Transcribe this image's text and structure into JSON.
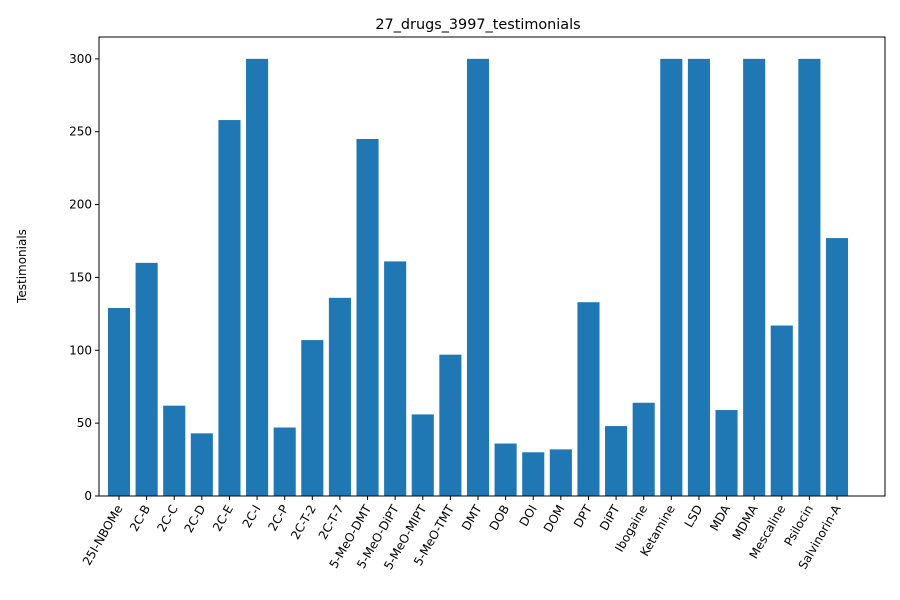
{
  "chart_data": {
    "type": "bar",
    "title": "27_drugs_3997_testimonials",
    "xlabel": "",
    "ylabel": "Testimonials",
    "ylim": [
      0,
      315
    ],
    "yticks": [
      0,
      50,
      100,
      150,
      200,
      250,
      300
    ],
    "bar_color": "#1f77b4",
    "grid": false,
    "categories": [
      "25I-NBOMe",
      "2C-B",
      "2C-C",
      "2C-D",
      "2C-E",
      "2C-I",
      "2C-P",
      "2C-T-2",
      "2C-T-7",
      "5-MeO-DMT",
      "5-MeO-DiPT",
      "5-MeO-MIPT",
      "5-MeO-TMT",
      "DMT",
      "DOB",
      "DOI",
      "DOM",
      "DPT",
      "DiPT",
      "Ibogaine",
      "Ketamine",
      "LSD",
      "MDA",
      "MDMA",
      "Mescaline",
      "Psilocin",
      "Salvinorin-A"
    ],
    "values": [
      129,
      160,
      62,
      43,
      258,
      300,
      47,
      107,
      136,
      245,
      161,
      56,
      97,
      300,
      36,
      30,
      32,
      133,
      48,
      64,
      300,
      300,
      59,
      300,
      117,
      300,
      177
    ]
  }
}
